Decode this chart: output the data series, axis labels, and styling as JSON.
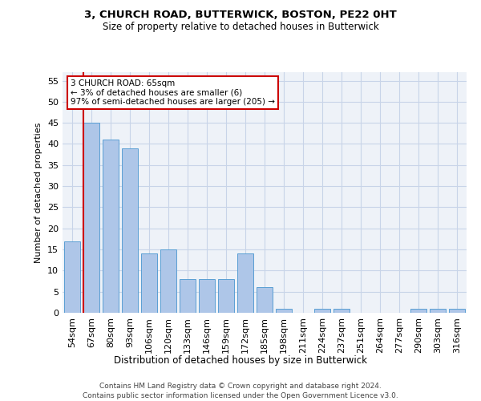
{
  "title1": "3, CHURCH ROAD, BUTTERWICK, BOSTON, PE22 0HT",
  "title2": "Size of property relative to detached houses in Butterwick",
  "xlabel": "Distribution of detached houses by size in Butterwick",
  "ylabel": "Number of detached properties",
  "categories": [
    "54sqm",
    "67sqm",
    "80sqm",
    "93sqm",
    "106sqm",
    "120sqm",
    "133sqm",
    "146sqm",
    "159sqm",
    "172sqm",
    "185sqm",
    "198sqm",
    "211sqm",
    "224sqm",
    "237sqm",
    "251sqm",
    "264sqm",
    "277sqm",
    "290sqm",
    "303sqm",
    "316sqm"
  ],
  "values": [
    17,
    45,
    41,
    39,
    14,
    15,
    8,
    8,
    8,
    14,
    6,
    1,
    0,
    1,
    1,
    0,
    0,
    0,
    1,
    1,
    1
  ],
  "bar_color": "#aec6e8",
  "bar_edge_color": "#5a9fd4",
  "highlight_color": "#cc0000",
  "annotation_text": "3 CHURCH ROAD: 65sqm\n← 3% of detached houses are smaller (6)\n97% of semi-detached houses are larger (205) →",
  "annotation_box_color": "#ffffff",
  "annotation_box_edge": "#cc0000",
  "ylim": [
    0,
    57
  ],
  "yticks": [
    0,
    5,
    10,
    15,
    20,
    25,
    30,
    35,
    40,
    45,
    50,
    55
  ],
  "grid_color": "#c8d4e8",
  "bg_color": "#eef2f8",
  "footer1": "Contains HM Land Registry data © Crown copyright and database right 2024.",
  "footer2": "Contains public sector information licensed under the Open Government Licence v3.0."
}
